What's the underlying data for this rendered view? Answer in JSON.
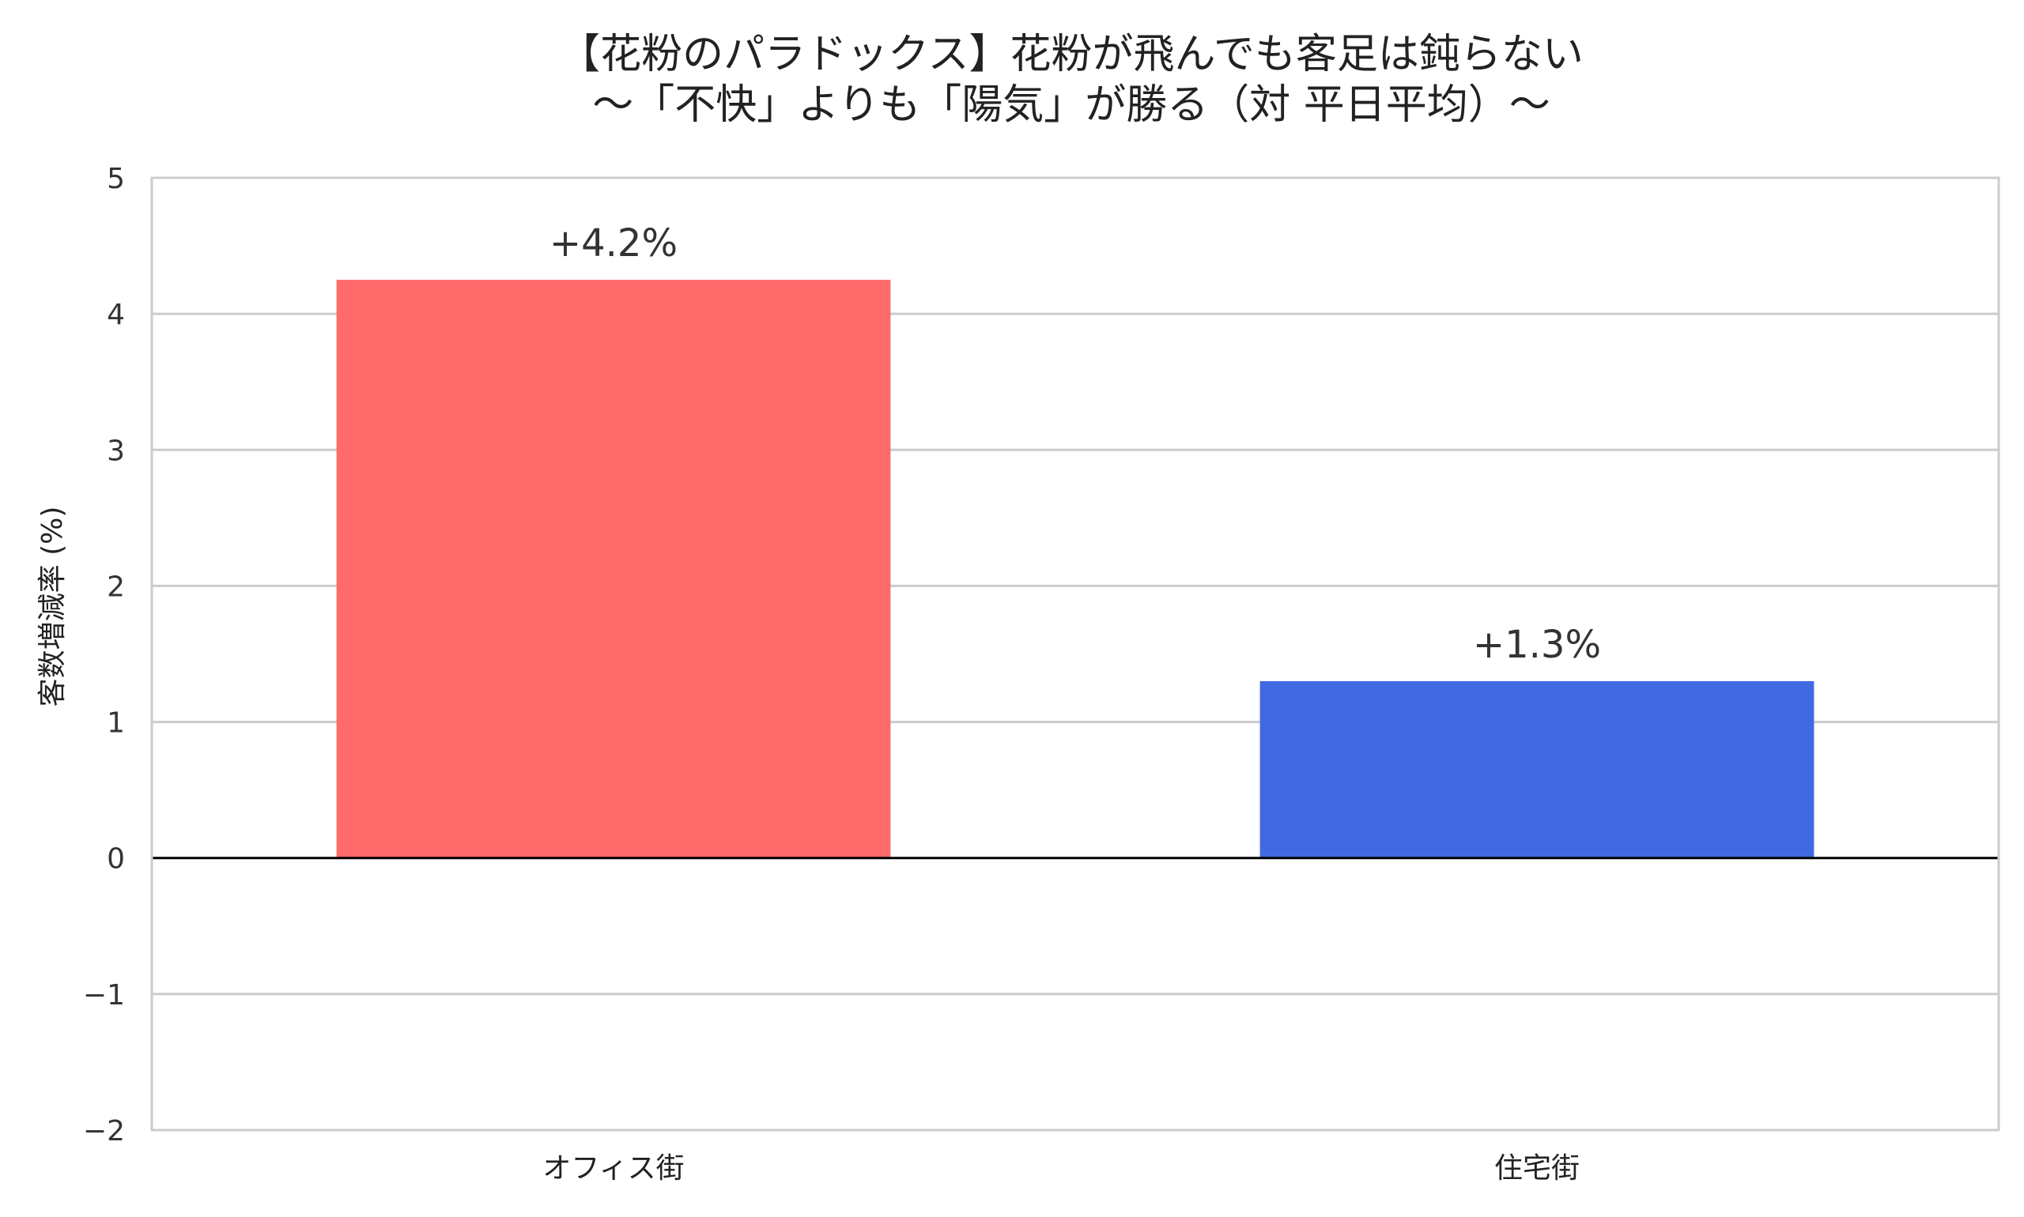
{
  "chart_data": {
    "type": "bar",
    "title": [
      "【花粉のパラドックス】花粉が飛んでも客足は鈍らない",
      "～「不快」よりも「陽気」が勝る（対 平日平均）～"
    ],
    "xlabel": "",
    "ylabel": "客数増減率 (%)",
    "ylim": [
      -2,
      5
    ],
    "yticks": [
      -2,
      -1,
      0,
      1,
      2,
      3,
      4,
      5
    ],
    "ytick_labels": [
      "−2",
      "−1",
      "0",
      "1",
      "2",
      "3",
      "4",
      "5"
    ],
    "categories": [
      "オフィス街",
      "住宅街"
    ],
    "values": [
      4.25,
      1.3
    ],
    "data_labels": [
      "+4.2%",
      "+1.3%"
    ],
    "colors": [
      "#ff6b6b",
      "#4169e1"
    ],
    "grid": true,
    "legend": "none"
  }
}
